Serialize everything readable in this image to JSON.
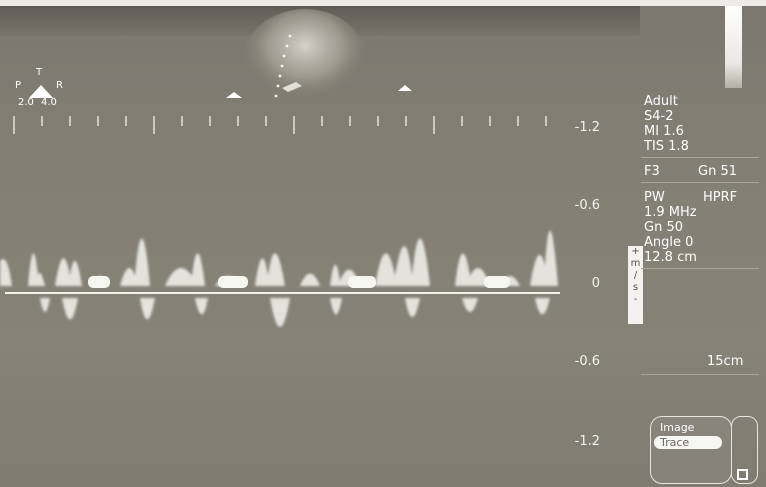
{
  "probe_marker": {
    "top": "T",
    "left": "P",
    "right": "R",
    "left_value": "2.0",
    "right_value": "4.0"
  },
  "patient": {
    "category": "Adult",
    "probe": "S4-2",
    "mi": "MI 1.6",
    "tis": "TIS 1.8"
  },
  "freq_gain": {
    "f": "F3",
    "gn": "Gn 51"
  },
  "doppler": {
    "mode": "PW",
    "prf": "HPRF",
    "freq": "1.9 MHz",
    "gain": "Gn 50",
    "angle": "Angle 0",
    "depth": "12.8 cm"
  },
  "depth_scale": "15cm",
  "velocity_scale": [
    "-1.2",
    "-0.6",
    "0",
    "-0.6",
    "-1.2"
  ],
  "velocity_unit": [
    "+",
    "m",
    "/",
    "s",
    "-"
  ],
  "buttons": {
    "image": "Image",
    "trace": "Trace"
  },
  "colors": {
    "background": "#828074",
    "text": "#ffffff",
    "baseline": "#f2f1ea"
  }
}
